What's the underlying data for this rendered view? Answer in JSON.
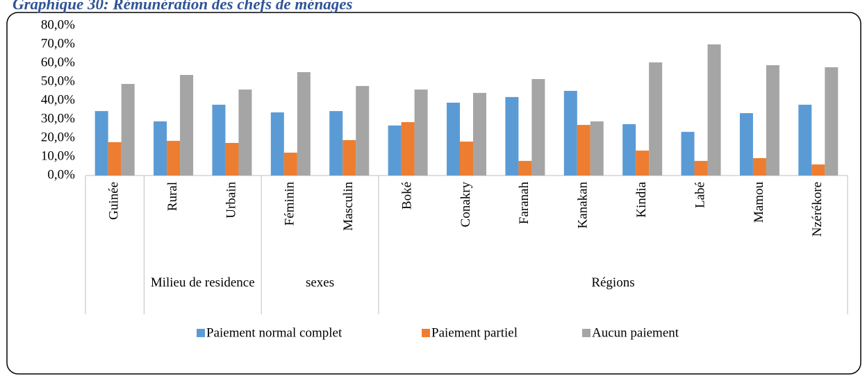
{
  "chart_data": {
    "type": "bar",
    "title": "Graphique 30: Rémunération des chefs de ménages",
    "categories": [
      "Guinée",
      "Rural",
      "Urbain",
      "Féminin",
      "Masculin",
      "Boké",
      "Conakry",
      "Faranah",
      "Kanakan",
      "Kindia",
      "Labé",
      "Mamou",
      "Nzérékore"
    ],
    "groups": [
      {
        "label": null,
        "size": 1
      },
      {
        "label": "Milieu de residence",
        "size": 2
      },
      {
        "label": "sexes",
        "size": 2
      },
      {
        "label": "Régions",
        "size": 8
      }
    ],
    "series": [
      {
        "name": "Paiement normal complet",
        "color": "#5b9bd5",
        "values": [
          34.4,
          28.9,
          37.8,
          33.7,
          34.4,
          26.7,
          38.9,
          41.9,
          45.2,
          27.4,
          23.3,
          33.3,
          37.8
        ]
      },
      {
        "name": "Paiement partiel",
        "color": "#ed7d31",
        "values": [
          17.8,
          18.5,
          17.4,
          12.2,
          18.9,
          28.5,
          18.1,
          7.8,
          27.0,
          13.3,
          7.8,
          9.3,
          5.9
        ]
      },
      {
        "name": "Aucun paiement",
        "color": "#a5a5a5",
        "values": [
          48.9,
          53.7,
          45.9,
          55.2,
          47.8,
          45.9,
          44.1,
          51.5,
          28.9,
          60.4,
          70.0,
          58.9,
          57.8
        ]
      }
    ],
    "ylim": [
      0,
      80
    ],
    "yticks": [
      {
        "value": 0,
        "label": "0,0%"
      },
      {
        "value": 10,
        "label": "10,0%"
      },
      {
        "value": 20,
        "label": "20,0%"
      },
      {
        "value": 30,
        "label": "30,0%"
      },
      {
        "value": 40,
        "label": "40,0%"
      },
      {
        "value": 50,
        "label": "50,0%"
      },
      {
        "value": 60,
        "label": "60,0%"
      },
      {
        "value": 70,
        "label": "70,0%"
      },
      {
        "value": 80,
        "label": "80,0%"
      }
    ],
    "grid": false,
    "legend": "bottom"
  }
}
